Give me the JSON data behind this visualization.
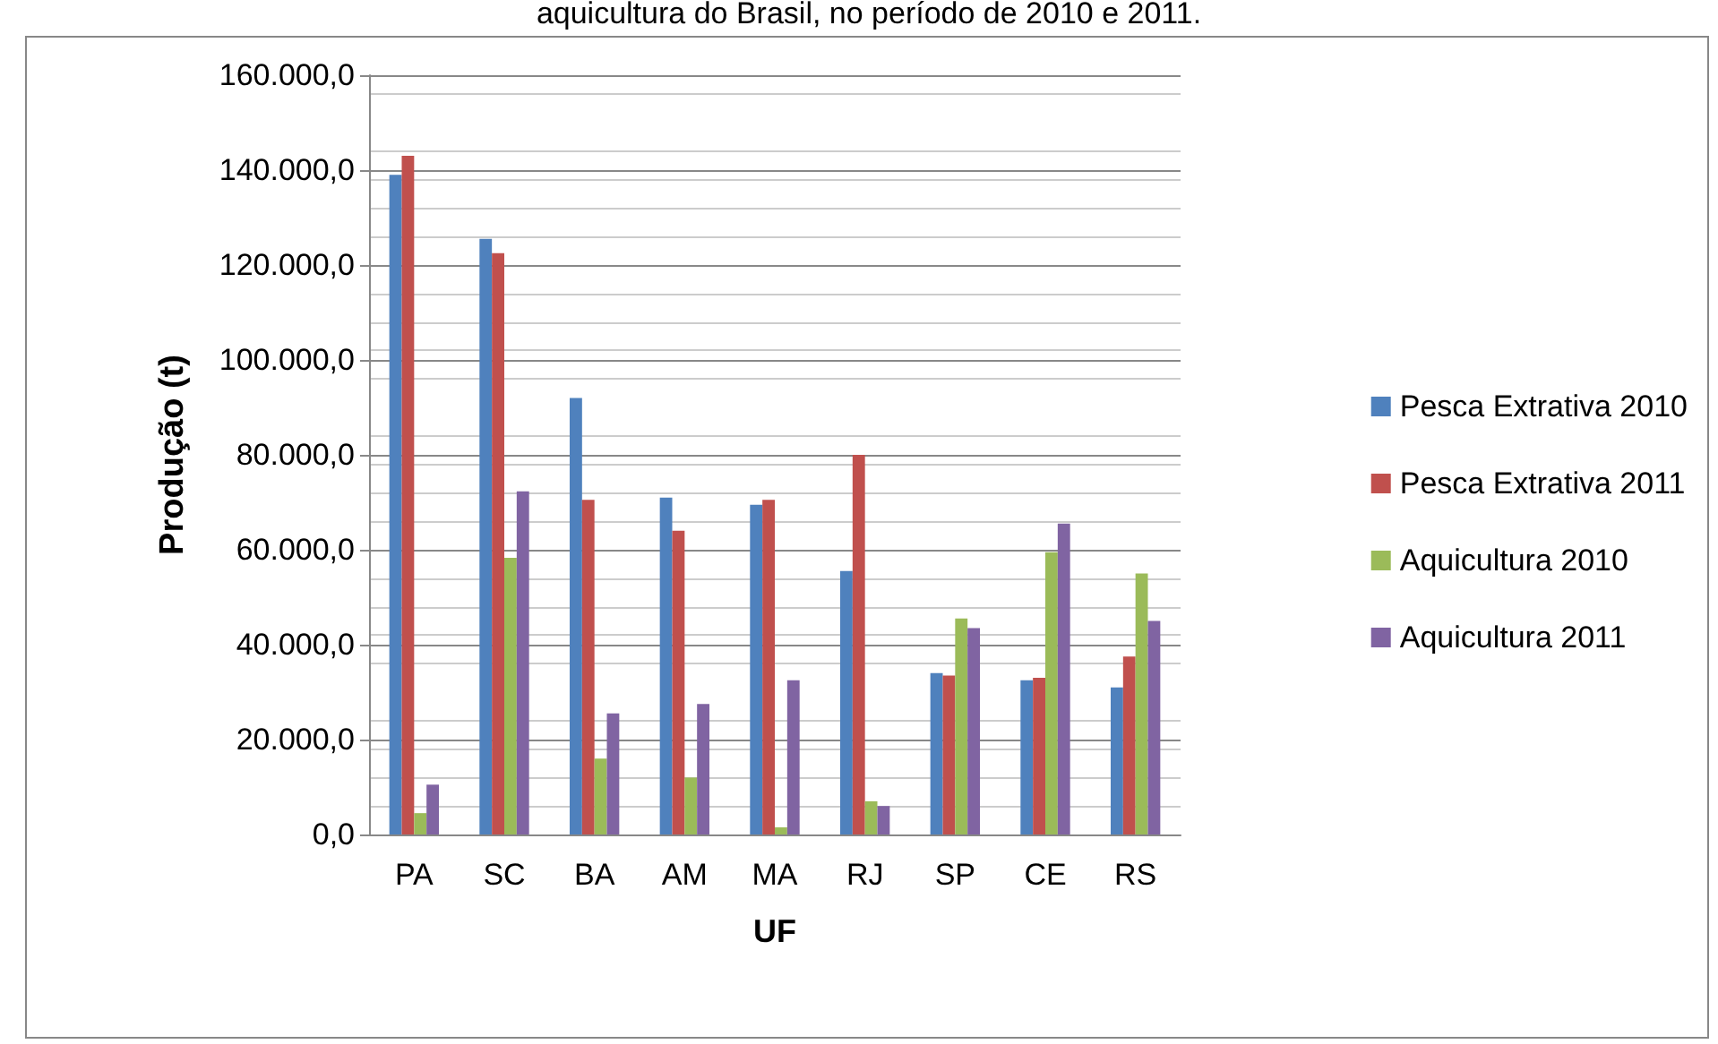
{
  "chart_data": {
    "type": "bar",
    "title": "aquicultura do Brasil, no período de 2010 e 2011.",
    "xlabel": "UF",
    "ylabel": "Produção (t)",
    "categories": [
      "PA",
      "SC",
      "BA",
      "AM",
      "MA",
      "RJ",
      "SP",
      "CE",
      "RS"
    ],
    "series": [
      {
        "name": "Pesca Extrativa 2010",
        "color": "#4f81bd",
        "values": [
          139000,
          125500,
          92000,
          71000,
          69500,
          55500,
          34000,
          32500,
          31000
        ]
      },
      {
        "name": "Pesca Extrativa 2011",
        "color": "#c0504d",
        "values": [
          143000,
          122500,
          70500,
          64000,
          70500,
          80000,
          33500,
          33000,
          37500
        ]
      },
      {
        "name": "Aquicultura 2010",
        "color": "#9bbb59",
        "values": [
          4500,
          58300,
          16000,
          12000,
          1500,
          7000,
          45500,
          59500,
          55000
        ]
      },
      {
        "name": "Aquicultura 2011",
        "color": "#8064a2",
        "values": [
          10500,
          72300,
          25500,
          27500,
          32500,
          6000,
          43500,
          65500,
          45000
        ]
      }
    ],
    "ylim": [
      0,
      160000
    ],
    "yticks": [
      {
        "value": 0,
        "label": "0,0"
      },
      {
        "value": 20000,
        "label": "20.000,0"
      },
      {
        "value": 40000,
        "label": "40.000,0"
      },
      {
        "value": 60000,
        "label": "60.000,0"
      },
      {
        "value": 80000,
        "label": "80.000,0"
      },
      {
        "value": 100000,
        "label": "100.000,0"
      },
      {
        "value": 120000,
        "label": "120.000,0"
      },
      {
        "value": 140000,
        "label": "140.000,0"
      },
      {
        "value": 160000,
        "label": "160.000,0"
      }
    ],
    "grid": true,
    "legend": "right"
  }
}
